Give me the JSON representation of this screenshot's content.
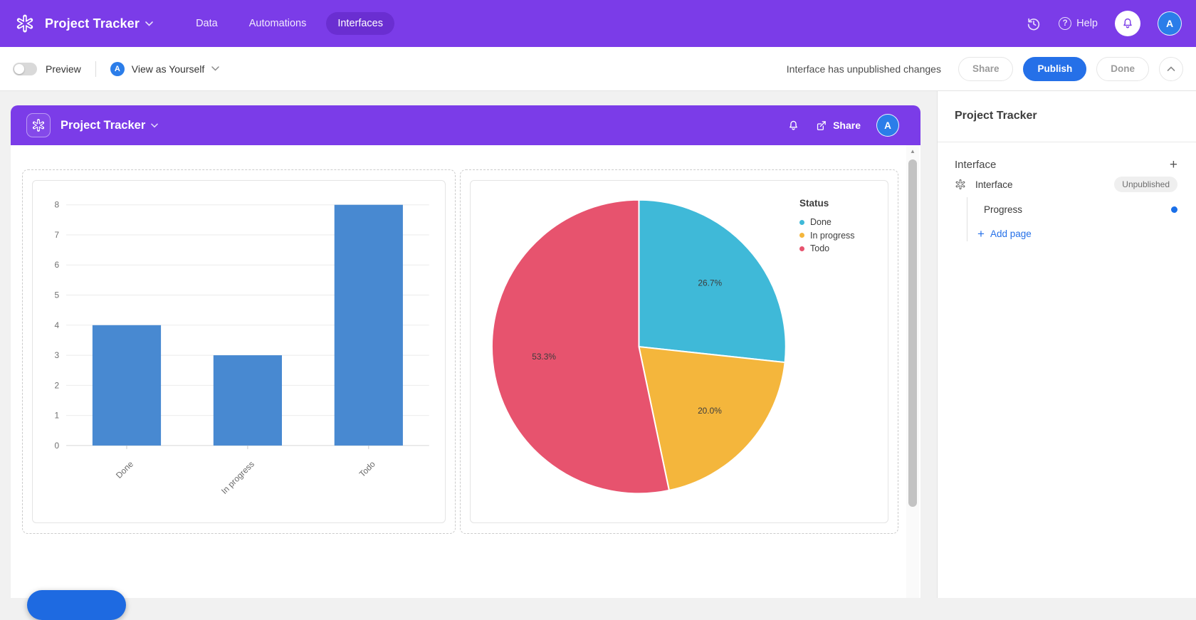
{
  "topbar": {
    "title": "Project Tracker",
    "tabs": [
      {
        "label": "Data",
        "active": false
      },
      {
        "label": "Automations",
        "active": false
      },
      {
        "label": "Interfaces",
        "active": true
      }
    ],
    "help_label": "Help",
    "avatar_initial": "A"
  },
  "toolbar": {
    "preview_label": "Preview",
    "view_as_label": "View as Yourself",
    "view_as_initial": "A",
    "status_text": "Interface has unpublished changes",
    "share_label": "Share",
    "publish_label": "Publish",
    "done_label": "Done"
  },
  "canvas_header": {
    "title": "Project Tracker",
    "share_label": "Share",
    "avatar_initial": "A"
  },
  "sidebar": {
    "title": "Project Tracker",
    "section_label": "Interface",
    "items": [
      {
        "label": "Interface",
        "badge": "Unpublished"
      },
      {
        "label": "Progress"
      }
    ],
    "add_page_label": "Add page"
  },
  "colors": {
    "brand_purple": "#7b3ce8",
    "active_tab_purple": "#6a2ed1",
    "primary_blue": "#2570e8",
    "avatar_blue": "#2b7de9",
    "bar_blue": "#4889d1",
    "pie_done": "#3fb9d8",
    "pie_in_progress": "#f4b63c",
    "pie_todo": "#e7536e"
  },
  "chart_data": [
    {
      "type": "bar",
      "title": "",
      "categories": [
        "Done",
        "In progress",
        "Todo"
      ],
      "values": [
        4,
        3,
        8
      ],
      "xlabel": "",
      "ylabel": "",
      "ylim": [
        0,
        8
      ],
      "yticks": [
        0,
        1,
        2,
        3,
        4,
        5,
        6,
        7,
        8
      ],
      "grid": true,
      "bar_color": "#4889d1",
      "legend_position": "none"
    },
    {
      "type": "pie",
      "title": "Status",
      "labels": [
        "Done",
        "In progress",
        "Todo"
      ],
      "values_percent": [
        26.7,
        20.0,
        53.3
      ],
      "display_labels": [
        "26.7%",
        "20.0%",
        "53.3%"
      ],
      "colors": [
        "#3fb9d8",
        "#f4b63c",
        "#e7536e"
      ],
      "legend_position": "right",
      "start_angle_deg": 0,
      "direction": "clockwise"
    }
  ]
}
